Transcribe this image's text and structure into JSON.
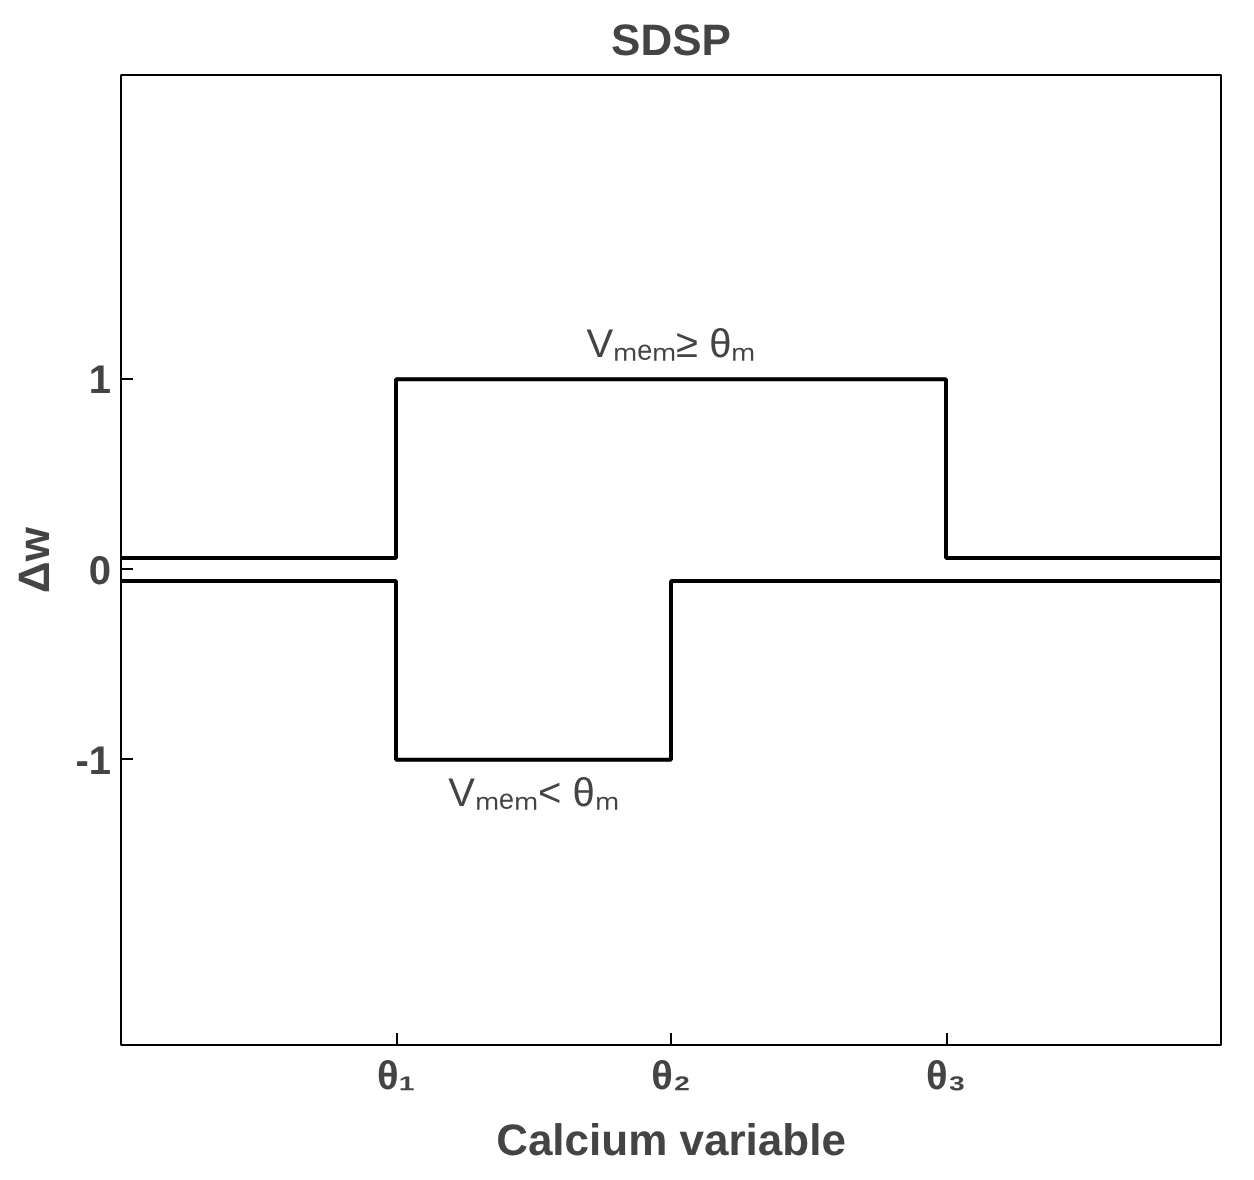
{
  "chart_data": {
    "type": "step",
    "title": "SDSP",
    "xlabel": "Calcium variable",
    "ylabel": "Δw",
    "categories": [
      null,
      "θ₁",
      "θ₂",
      "θ₃",
      null
    ],
    "ylim": [
      -2.5,
      2.6
    ],
    "yticks": [
      -1,
      0,
      1
    ],
    "series": [
      {
        "color": "#000000",
        "values": [
          0.06,
          1,
          1,
          0.06,
          0.06
        ]
      },
      {
        "color": "#000000",
        "values": [
          -0.06,
          -1,
          -0.06,
          -0.06,
          -0.06
        ]
      }
    ],
    "annotations": [
      "Vₘₑₘ≥ θₘ",
      "Vₘₑₘ< θₘ"
    ],
    "grid": false,
    "line_style": "solid",
    "marker": "none"
  }
}
